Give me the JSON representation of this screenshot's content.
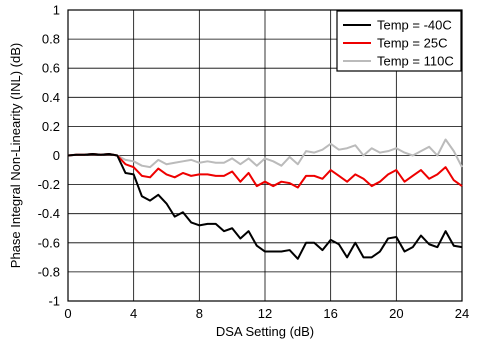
{
  "chart_data": {
    "type": "line",
    "title": "",
    "xlabel": "DSA Setting (dB)",
    "ylabel": "Phase Integral Non-Linearity (INL) (dB)",
    "xlim": [
      0,
      24
    ],
    "ylim": [
      -1,
      1
    ],
    "xticks": [
      0,
      4,
      8,
      12,
      16,
      20,
      24
    ],
    "yticks": [
      -1,
      -0.8,
      -0.6,
      -0.4,
      -0.2,
      0,
      0.2,
      0.4,
      0.6,
      0.8,
      1
    ],
    "xtick_labels": [
      "0",
      "4",
      "8",
      "12",
      "16",
      "20",
      "24"
    ],
    "ytick_labels": [
      "-1",
      "-0.8",
      "-0.6",
      "-0.4",
      "-0.2",
      "0",
      "0.2",
      "0.4",
      "0.6",
      "0.8",
      "1"
    ],
    "grid": true,
    "legend_position": "top-right",
    "x": [
      0,
      0.5,
      1,
      1.5,
      2,
      2.5,
      3,
      3.5,
      4,
      4.5,
      5,
      5.5,
      6,
      6.5,
      7,
      7.5,
      8,
      8.5,
      9,
      9.5,
      10,
      10.5,
      11,
      11.5,
      12,
      12.5,
      13,
      13.5,
      14,
      14.5,
      15,
      15.5,
      16,
      16.5,
      17,
      17.5,
      18,
      18.5,
      19,
      19.5,
      20,
      20.5,
      21,
      21.5,
      22,
      22.5,
      23,
      23.5,
      24
    ],
    "series": [
      {
        "name": "Temp = -40C",
        "color": "#000000",
        "values": [
          0,
          0.005,
          0.005,
          0.01,
          0.005,
          0.01,
          0,
          -0.12,
          -0.13,
          -0.28,
          -0.31,
          -0.27,
          -0.33,
          -0.42,
          -0.39,
          -0.46,
          -0.48,
          -0.47,
          -0.47,
          -0.52,
          -0.5,
          -0.57,
          -0.52,
          -0.62,
          -0.66,
          -0.66,
          -0.66,
          -0.65,
          -0.71,
          -0.6,
          -0.6,
          -0.65,
          -0.58,
          -0.61,
          -0.7,
          -0.6,
          -0.7,
          -0.7,
          -0.66,
          -0.57,
          -0.56,
          -0.66,
          -0.63,
          -0.55,
          -0.61,
          -0.63,
          -0.52,
          -0.62,
          -0.63
        ]
      },
      {
        "name": "Temp = 25C",
        "color": "#ee0000",
        "values": [
          0,
          0.005,
          0.005,
          0.01,
          0.005,
          0.01,
          0,
          -0.06,
          -0.08,
          -0.14,
          -0.15,
          -0.09,
          -0.13,
          -0.15,
          -0.12,
          -0.14,
          -0.13,
          -0.13,
          -0.14,
          -0.14,
          -0.11,
          -0.18,
          -0.12,
          -0.21,
          -0.18,
          -0.21,
          -0.18,
          -0.19,
          -0.22,
          -0.14,
          -0.14,
          -0.16,
          -0.1,
          -0.14,
          -0.18,
          -0.13,
          -0.16,
          -0.21,
          -0.18,
          -0.13,
          -0.1,
          -0.18,
          -0.14,
          -0.1,
          -0.16,
          -0.13,
          -0.08,
          -0.17,
          -0.21
        ]
      },
      {
        "name": "Temp = 110C",
        "color": "#bbbbbb",
        "values": [
          0,
          0.005,
          0.005,
          0.01,
          0.005,
          0.01,
          0,
          -0.03,
          -0.04,
          -0.07,
          -0.08,
          -0.03,
          -0.06,
          -0.05,
          -0.04,
          -0.03,
          -0.05,
          -0.04,
          -0.05,
          -0.05,
          -0.02,
          -0.06,
          -0.02,
          -0.07,
          -0.02,
          -0.04,
          -0.07,
          -0.01,
          -0.06,
          0.03,
          0.02,
          0.04,
          0.08,
          0.04,
          0.05,
          0.07,
          0.0,
          0.05,
          0.02,
          0.03,
          0.05,
          0.02,
          0.0,
          0.03,
          0.06,
          0.0,
          0.11,
          0.03,
          -0.08
        ]
      }
    ]
  }
}
